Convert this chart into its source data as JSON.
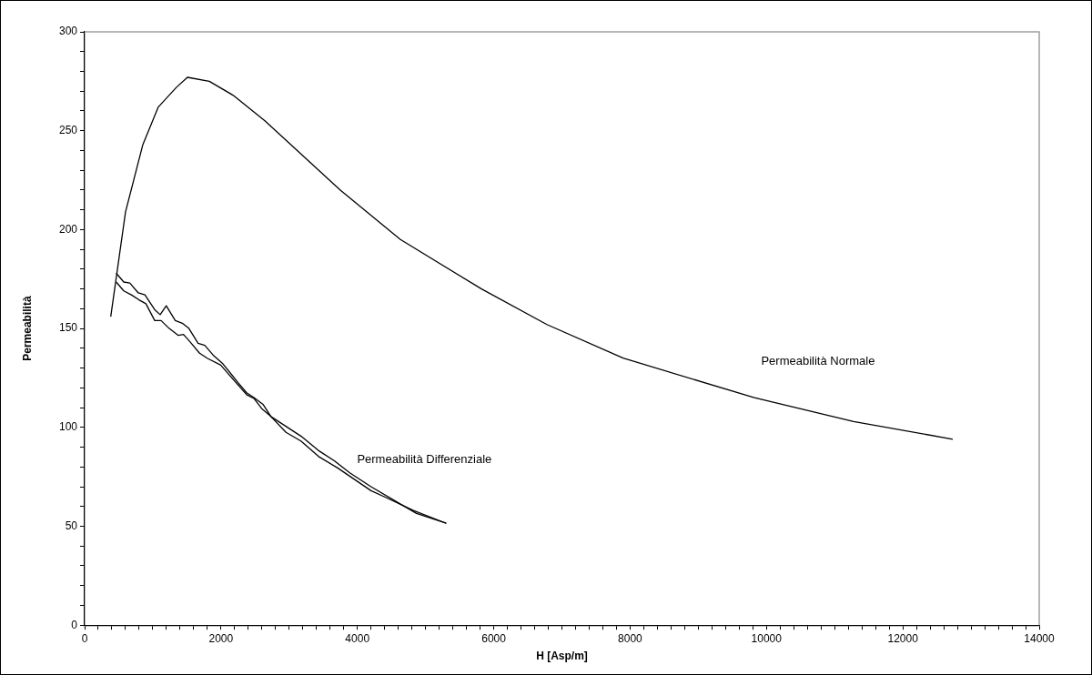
{
  "chart_data": {
    "type": "line",
    "xlabel": "H [Asp/m]",
    "ylabel": "Permeabilità",
    "xlim": [
      0,
      14000
    ],
    "xticks": [
      0,
      {
        "value": 200,
        "label": null
      },
      {
        "value": 400,
        "label": null
      },
      {
        "value": 600,
        "label": null
      },
      {
        "value": 800,
        "label": null
      },
      {
        "value": 1000,
        "label": null
      },
      {
        "value": 1200,
        "label": null
      },
      {
        "value": 1400,
        "label": null
      },
      {
        "value": 1600,
        "label": null
      },
      {
        "value": 1800,
        "label": null
      },
      2000,
      {
        "value": 2200,
        "label": null
      },
      {
        "value": 2400,
        "label": null
      },
      {
        "value": 2600,
        "label": null
      },
      {
        "value": 2800,
        "label": null
      },
      {
        "value": 3000,
        "label": null
      },
      {
        "value": 3200,
        "label": null
      },
      {
        "value": 3400,
        "label": null
      },
      {
        "value": 3600,
        "label": null
      },
      {
        "value": 3800,
        "label": null
      },
      4000,
      {
        "value": 4200,
        "label": null
      },
      {
        "value": 4400,
        "label": null
      },
      {
        "value": 4600,
        "label": null
      },
      {
        "value": 4800,
        "label": null
      },
      {
        "value": 5000,
        "label": null
      },
      {
        "value": 5200,
        "label": null
      },
      {
        "value": 5400,
        "label": null
      },
      {
        "value": 5600,
        "label": null
      },
      {
        "value": 5800,
        "label": null
      },
      6000,
      {
        "value": 6200,
        "label": null
      },
      {
        "value": 6400,
        "label": null
      },
      {
        "value": 6600,
        "label": null
      },
      {
        "value": 6800,
        "label": null
      },
      {
        "value": 7000,
        "label": null
      },
      {
        "value": 7200,
        "label": null
      },
      {
        "value": 7400,
        "label": null
      },
      {
        "value": 7600,
        "label": null
      },
      {
        "value": 7800,
        "label": null
      },
      8000,
      {
        "value": 8200,
        "label": null
      },
      {
        "value": 8400,
        "label": null
      },
      {
        "value": 8600,
        "label": null
      },
      {
        "value": 8800,
        "label": null
      },
      {
        "value": 9000,
        "label": null
      },
      {
        "value": 9200,
        "label": null
      },
      {
        "value": 9400,
        "label": null
      },
      {
        "value": 9600,
        "label": null
      },
      {
        "value": 9800,
        "label": null
      },
      10000,
      {
        "value": 10200,
        "label": null
      },
      {
        "value": 10400,
        "label": null
      },
      {
        "value": 10600,
        "label": null
      },
      {
        "value": 10800,
        "label": null
      },
      {
        "value": 11000,
        "label": null
      },
      {
        "value": 11200,
        "label": null
      },
      {
        "value": 11400,
        "label": null
      },
      {
        "value": 11600,
        "label": null
      },
      {
        "value": 11800,
        "label": null
      },
      12000,
      {
        "value": 12200,
        "label": null
      },
      {
        "value": 12400,
        "label": null
      },
      {
        "value": 12600,
        "label": null
      },
      {
        "value": 12800,
        "label": null
      },
      {
        "value": 13000,
        "label": null
      },
      {
        "value": 13200,
        "label": null
      },
      {
        "value": 13400,
        "label": null
      },
      {
        "value": 13600,
        "label": null
      },
      {
        "value": 13800,
        "label": null
      },
      14000
    ],
    "ylim": [
      0,
      300
    ],
    "yticks": [
      0,
      {
        "value": 10,
        "label": null
      },
      {
        "value": 20,
        "label": null
      },
      {
        "value": 30,
        "label": null
      },
      {
        "value": 40,
        "label": null
      },
      50,
      {
        "value": 60,
        "label": null
      },
      {
        "value": 70,
        "label": null
      },
      {
        "value": 80,
        "label": null
      },
      {
        "value": 90,
        "label": null
      },
      100,
      {
        "value": 110,
        "label": null
      },
      {
        "value": 120,
        "label": null
      },
      {
        "value": 130,
        "label": null
      },
      {
        "value": 140,
        "label": null
      },
      150,
      {
        "value": 160,
        "label": null
      },
      {
        "value": 170,
        "label": null
      },
      {
        "value": 180,
        "label": null
      },
      {
        "value": 190,
        "label": null
      },
      200,
      {
        "value": 210,
        "label": null
      },
      {
        "value": 220,
        "label": null
      },
      {
        "value": 230,
        "label": null
      },
      {
        "value": 240,
        "label": null
      },
      250,
      {
        "value": 260,
        "label": null
      },
      {
        "value": 270,
        "label": null
      },
      {
        "value": 280,
        "label": null
      },
      {
        "value": 290,
        "label": null
      },
      300
    ],
    "grid": false,
    "legend": false,
    "marker": "none",
    "line_style": "solid",
    "series": [
      {
        "name": "Permeabilità Normale",
        "color": "#000000",
        "x": [
          383,
          600,
          854,
          1081,
          1348,
          1508,
          1828,
          2175,
          2643,
          3750,
          4631,
          5821,
          6780,
          7898,
          9822,
          11278,
          12732
        ],
        "values": [
          156,
          209,
          243,
          262,
          272,
          277,
          275,
          268,
          255,
          220,
          195,
          170,
          152,
          135,
          115,
          103,
          94
        ]
      },
      {
        "name": "Permeabilità Differenziale",
        "color": "#000000",
        "x": [
          463,
          574,
          663,
          787,
          885,
          1028,
          1108,
          1197,
          1330,
          1441,
          1530,
          1664,
          1762,
          1886,
          2019,
          2242,
          2376,
          2487,
          2620,
          2732,
          3176,
          3443,
          3666,
          3888,
          4200,
          4644,
          4867,
          5303
        ],
        "values": [
          178,
          173.5,
          173,
          168,
          167,
          159.5,
          157,
          161.5,
          154,
          152.5,
          150,
          142.5,
          141.5,
          136.5,
          132.5,
          123,
          117.5,
          115,
          111.5,
          105.5,
          95.5,
          88,
          83,
          77,
          70,
          61,
          56.5,
          51.5
        ]
      },
      {
        "color": "#000000",
        "x": [
          463,
          574,
          685,
          796,
          899,
          1028,
          1121,
          1241,
          1375,
          1450,
          1553,
          1686,
          1797,
          1997,
          2109,
          2376,
          2487,
          2598,
          2732,
          2953,
          3176,
          3443,
          3710,
          4200,
          4422,
          4822,
          5303
        ],
        "values": [
          173.5,
          169,
          167,
          164.5,
          162.5,
          154,
          154,
          150,
          146.5,
          147,
          143,
          137.5,
          135,
          131.5,
          127,
          116.5,
          114.5,
          109.5,
          105.5,
          97.5,
          93,
          85,
          79.5,
          68,
          64.5,
          58,
          51.5
        ]
      }
    ]
  }
}
